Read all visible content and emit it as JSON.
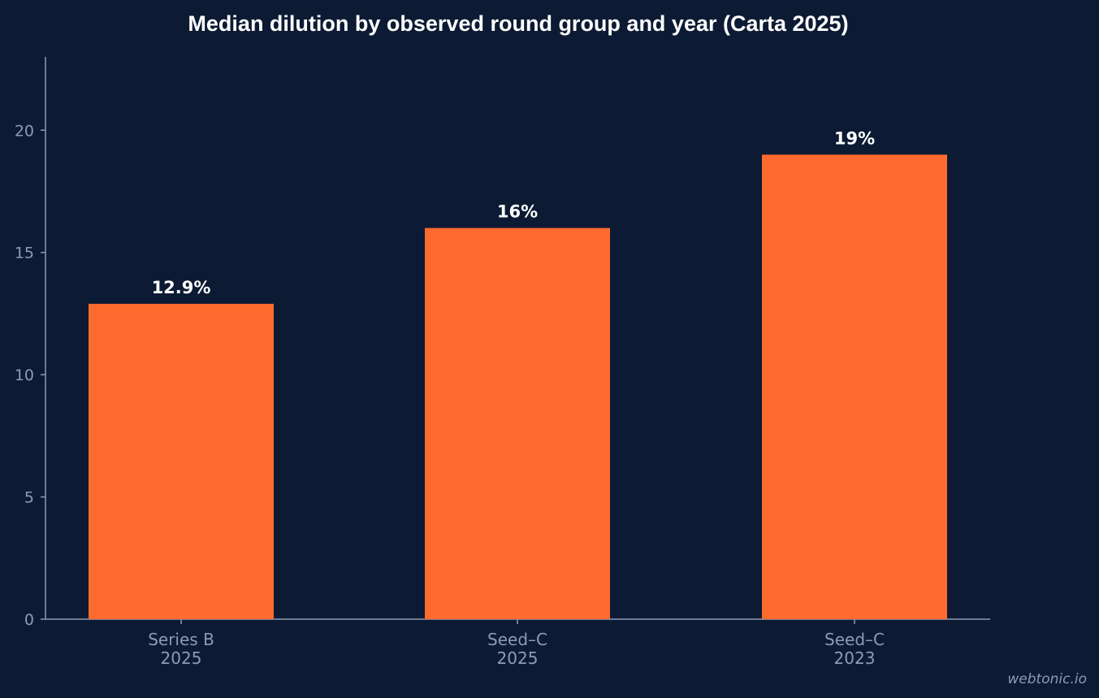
{
  "chart_data": {
    "type": "bar",
    "title": "Median dilution by observed round group and year (Carta 2025)",
    "categories": [
      [
        "Series B",
        "2025"
      ],
      [
        "Seed–C",
        "2025"
      ],
      [
        "Seed–C",
        "2023"
      ]
    ],
    "values": [
      12.9,
      16,
      19
    ],
    "data_labels": [
      "12.9%",
      "16%",
      "19%"
    ],
    "yticks": [
      "0",
      "5",
      "10",
      "15",
      "20"
    ],
    "ylim": [
      0,
      23
    ],
    "xlabel": "",
    "ylabel": "",
    "grid": false,
    "legend": "none"
  },
  "colors": {
    "background": "#0c1b33",
    "bar": "#ff6b2e",
    "axis": "#8d9bb5",
    "text": "#ffffff"
  },
  "watermark": "webtonic.io"
}
